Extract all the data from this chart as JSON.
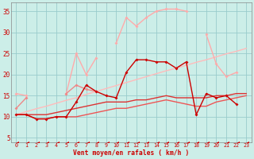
{
  "xlabel": "Vent moyen/en rafales ( km/h )",
  "background_color": "#cceee8",
  "grid_color": "#99cccc",
  "xlim": [
    -0.5,
    23.5
  ],
  "ylim": [
    4,
    37
  ],
  "yticks": [
    5,
    10,
    15,
    20,
    25,
    30,
    35
  ],
  "xticks": [
    0,
    1,
    2,
    3,
    4,
    5,
    6,
    7,
    8,
    9,
    10,
    11,
    12,
    13,
    14,
    15,
    16,
    17,
    18,
    19,
    20,
    21,
    22,
    23
  ],
  "x": [
    0,
    1,
    2,
    3,
    4,
    5,
    6,
    7,
    8,
    9,
    10,
    11,
    12,
    13,
    14,
    15,
    16,
    17,
    18,
    19,
    20,
    21,
    22,
    23
  ],
  "series": [
    {
      "y": [
        10.5,
        10.5,
        9.5,
        9.5,
        10.0,
        10.0,
        13.5,
        17.5,
        16.0,
        15.0,
        14.5,
        20.5,
        23.5,
        23.5,
        23.0,
        23.0,
        21.5,
        23.0,
        10.5,
        15.5,
        14.5,
        15.0,
        13.0,
        null
      ],
      "color": "#cc0000",
      "lw": 1.0,
      "marker": "D",
      "ms": 2.0,
      "zorder": 5
    },
    {
      "y": [
        12.0,
        14.5,
        null,
        null,
        null,
        15.5,
        17.5,
        16.5,
        16.0,
        null,
        null,
        null,
        null,
        null,
        null,
        null,
        null,
        null,
        null,
        null,
        null,
        null,
        null,
        null
      ],
      "color": "#ee8888",
      "lw": 1.0,
      "marker": "D",
      "ms": 2.0,
      "zorder": 4
    },
    {
      "y": [
        15.5,
        15.0,
        null,
        null,
        null,
        15.5,
        25.0,
        20.0,
        24.0,
        null,
        27.5,
        33.5,
        31.5,
        33.5,
        35.0,
        35.5,
        35.5,
        35.0,
        null,
        29.5,
        22.5,
        19.5,
        20.5,
        null
      ],
      "color": "#ffaaaa",
      "lw": 1.0,
      "marker": "D",
      "ms": 2.0,
      "zorder": 3
    },
    {
      "y": [
        10.5,
        11.2,
        11.9,
        12.5,
        13.2,
        13.9,
        14.5,
        15.3,
        16.0,
        16.7,
        17.4,
        18.1,
        18.8,
        19.5,
        20.2,
        20.9,
        21.5,
        22.2,
        22.9,
        23.5,
        24.2,
        24.9,
        25.5,
        26.2
      ],
      "color": "#ffbbbb",
      "lw": 1.0,
      "marker": null,
      "ms": 0,
      "zorder": 2
    },
    {
      "y": [
        10.5,
        10.5,
        10.5,
        10.5,
        11.0,
        11.5,
        12.0,
        12.5,
        13.0,
        13.5,
        13.5,
        13.5,
        14.0,
        14.0,
        14.5,
        15.0,
        14.5,
        14.5,
        14.5,
        14.5,
        15.0,
        15.0,
        15.5,
        15.5
      ],
      "color": "#dd3333",
      "lw": 1.0,
      "marker": null,
      "ms": 0,
      "zorder": 3
    },
    {
      "y": [
        10.5,
        10.5,
        9.5,
        9.5,
        10.0,
        10.0,
        10.0,
        10.5,
        11.0,
        11.5,
        12.0,
        12.0,
        12.5,
        13.0,
        13.5,
        14.0,
        13.5,
        13.0,
        12.5,
        12.5,
        13.5,
        14.0,
        14.5,
        15.0
      ],
      "color": "#ee5555",
      "lw": 1.0,
      "marker": null,
      "ms": 0,
      "zorder": 3
    },
    {
      "y": [
        3.8,
        3.8,
        3.8,
        3.8,
        3.8,
        3.8,
        3.8,
        3.8,
        3.8,
        3.8,
        3.8,
        3.8,
        3.8,
        3.8,
        3.8,
        3.8,
        3.8,
        3.8,
        3.8,
        3.8,
        3.8,
        3.8,
        3.8,
        3.8
      ],
      "color": "#cc0000",
      "lw": 0.5,
      "marker": 4,
      "ms": 3.5,
      "zorder": 6
    }
  ]
}
